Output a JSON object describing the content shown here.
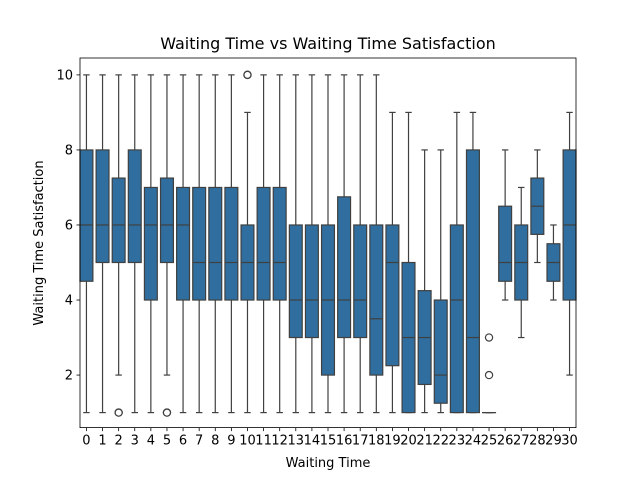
{
  "chart_data": {
    "type": "box",
    "title": "Waiting Time vs Waiting Time Satisfaction",
    "xlabel": "Waiting Time",
    "ylabel": "Waiting Time Satisfaction",
    "ylim": [
      0.6,
      10.45
    ],
    "yticks": [
      2,
      4,
      6,
      8,
      10
    ],
    "grid": false,
    "box_color": "#2f6e9e",
    "line_color": "#404040",
    "categories": [
      "0",
      "1",
      "2",
      "3",
      "4",
      "5",
      "6",
      "7",
      "8",
      "9",
      "10",
      "11",
      "12",
      "13",
      "14",
      "15",
      "16",
      "17",
      "18",
      "19",
      "20",
      "21",
      "22",
      "23",
      "24",
      "25",
      "26",
      "27",
      "28",
      "29",
      "30"
    ],
    "boxes": [
      {
        "cat": "0",
        "q1": 4.5,
        "median": 6,
        "q3": 8,
        "whislo": 1,
        "whishi": 10,
        "fliers": []
      },
      {
        "cat": "1",
        "q1": 5,
        "median": 6,
        "q3": 8,
        "whislo": 1,
        "whishi": 10,
        "fliers": []
      },
      {
        "cat": "2",
        "q1": 5,
        "median": 6,
        "q3": 7.25,
        "whislo": 2,
        "whishi": 10,
        "fliers": [
          1,
          1
        ]
      },
      {
        "cat": "3",
        "q1": 5,
        "median": 6,
        "q3": 8,
        "whislo": 1,
        "whishi": 10,
        "fliers": []
      },
      {
        "cat": "4",
        "q1": 4,
        "median": 6,
        "q3": 7,
        "whislo": 1,
        "whishi": 10,
        "fliers": []
      },
      {
        "cat": "5",
        "q1": 5,
        "median": 6,
        "q3": 7.25,
        "whislo": 2,
        "whishi": 10,
        "fliers": [
          1,
          1
        ]
      },
      {
        "cat": "6",
        "q1": 4,
        "median": 6,
        "q3": 7,
        "whislo": 1,
        "whishi": 10,
        "fliers": []
      },
      {
        "cat": "7",
        "q1": 4,
        "median": 5,
        "q3": 7,
        "whislo": 1,
        "whishi": 10,
        "fliers": []
      },
      {
        "cat": "8",
        "q1": 4,
        "median": 5,
        "q3": 7,
        "whislo": 1,
        "whishi": 10,
        "fliers": []
      },
      {
        "cat": "9",
        "q1": 4,
        "median": 5,
        "q3": 7,
        "whislo": 1,
        "whishi": 10,
        "fliers": []
      },
      {
        "cat": "10",
        "q1": 4,
        "median": 5,
        "q3": 6,
        "whislo": 1,
        "whishi": 9,
        "fliers": [
          10,
          10
        ]
      },
      {
        "cat": "11",
        "q1": 4,
        "median": 5,
        "q3": 7,
        "whislo": 1,
        "whishi": 10,
        "fliers": []
      },
      {
        "cat": "12",
        "q1": 4,
        "median": 5,
        "q3": 7,
        "whislo": 1,
        "whishi": 10,
        "fliers": []
      },
      {
        "cat": "13",
        "q1": 3,
        "median": 4,
        "q3": 6,
        "whislo": 1,
        "whishi": 10,
        "fliers": []
      },
      {
        "cat": "14",
        "q1": 3,
        "median": 4,
        "q3": 6,
        "whislo": 1,
        "whishi": 10,
        "fliers": []
      },
      {
        "cat": "15",
        "q1": 2,
        "median": 4,
        "q3": 6,
        "whislo": 1,
        "whishi": 10,
        "fliers": []
      },
      {
        "cat": "16",
        "q1": 3,
        "median": 4,
        "q3": 6.75,
        "whislo": 1,
        "whishi": 10,
        "fliers": []
      },
      {
        "cat": "17",
        "q1": 3,
        "median": 4,
        "q3": 6,
        "whislo": 1,
        "whishi": 10,
        "fliers": []
      },
      {
        "cat": "18",
        "q1": 2,
        "median": 3.5,
        "q3": 6,
        "whislo": 1,
        "whishi": 10,
        "fliers": []
      },
      {
        "cat": "19",
        "q1": 2.25,
        "median": 5,
        "q3": 6,
        "whislo": 1,
        "whishi": 9,
        "fliers": []
      },
      {
        "cat": "20",
        "q1": 1,
        "median": 3,
        "q3": 5,
        "whislo": 1,
        "whishi": 9,
        "fliers": []
      },
      {
        "cat": "21",
        "q1": 1.75,
        "median": 3,
        "q3": 4.25,
        "whislo": 1,
        "whishi": 8,
        "fliers": []
      },
      {
        "cat": "22",
        "q1": 1.25,
        "median": 2,
        "q3": 4,
        "whislo": 1,
        "whishi": 8,
        "fliers": []
      },
      {
        "cat": "23",
        "q1": 1,
        "median": 4,
        "q3": 6,
        "whislo": 1,
        "whishi": 9,
        "fliers": []
      },
      {
        "cat": "24",
        "q1": 1,
        "median": 3,
        "q3": 8,
        "whislo": 1,
        "whishi": 9,
        "fliers": []
      },
      {
        "cat": "25",
        "q1": 1,
        "median": 1,
        "q3": 1,
        "whislo": 1,
        "whishi": 1,
        "fliers": [
          3,
          2
        ]
      },
      {
        "cat": "26",
        "q1": 4.5,
        "median": 5,
        "q3": 6.5,
        "whislo": 4,
        "whishi": 8,
        "fliers": []
      },
      {
        "cat": "27",
        "q1": 4,
        "median": 5,
        "q3": 6,
        "whislo": 3,
        "whishi": 7,
        "fliers": []
      },
      {
        "cat": "28",
        "q1": 5.75,
        "median": 6.5,
        "q3": 7.25,
        "whislo": 5,
        "whishi": 8,
        "fliers": []
      },
      {
        "cat": "29",
        "q1": 4.5,
        "median": 5,
        "q3": 5.5,
        "whislo": 4,
        "whishi": 6,
        "fliers": []
      },
      {
        "cat": "30",
        "q1": 4,
        "median": 6,
        "q3": 8,
        "whislo": 2,
        "whishi": 9,
        "fliers": []
      }
    ]
  }
}
